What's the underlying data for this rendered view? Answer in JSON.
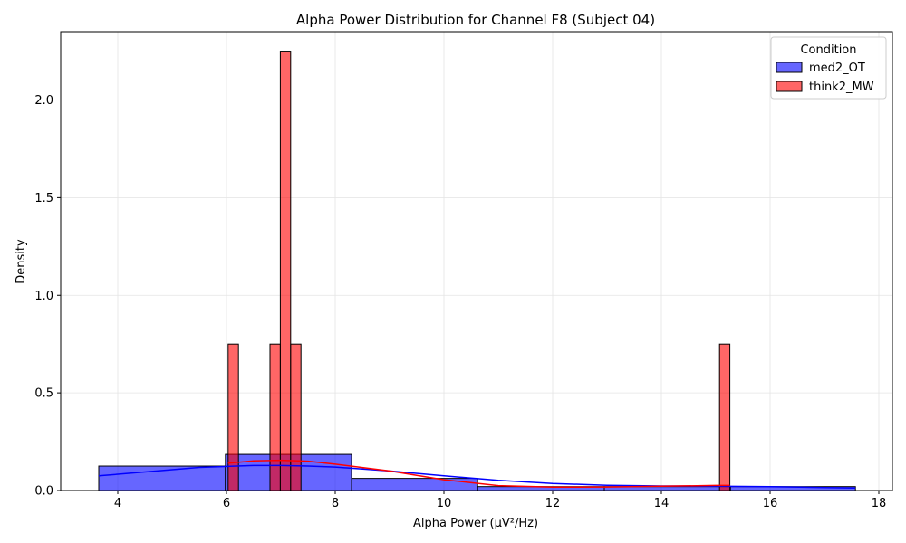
{
  "chart_data": {
    "type": "histogram",
    "title": "Alpha Power Distribution for Channel F8 (Subject 04)",
    "xlabel": "Alpha Power (µV²/Hz)",
    "ylabel": "Density",
    "xlim": [
      2.95,
      18.25
    ],
    "ylim": [
      0,
      2.35
    ],
    "xticks": [
      4,
      6,
      8,
      10,
      12,
      14,
      16,
      18
    ],
    "yticks": [
      0.0,
      0.5,
      1.0,
      1.5,
      2.0
    ],
    "grid": true,
    "legend": {
      "title": "Condition",
      "location": "upper right"
    },
    "series": [
      {
        "name": "med2_OT",
        "color": "#0000ff",
        "bins": [
          {
            "x0": 3.65,
            "x1": 5.98,
            "density": 0.125
          },
          {
            "x0": 5.98,
            "x1": 8.3,
            "density": 0.185
          },
          {
            "x0": 8.3,
            "x1": 10.62,
            "density": 0.062
          },
          {
            "x0": 10.62,
            "x1": 12.95,
            "density": 0.02
          },
          {
            "x0": 12.95,
            "x1": 15.27,
            "density": 0.02
          },
          {
            "x0": 15.27,
            "x1": 17.57,
            "density": 0.02
          }
        ],
        "kde": {
          "x": [
            3.65,
            4.5,
            5.5,
            6.5,
            7.0,
            7.5,
            8.0,
            9.0,
            10.0,
            11.0,
            12.0,
            13.0,
            14.0,
            15.0,
            16.0,
            17.0,
            17.57
          ],
          "y": [
            0.075,
            0.095,
            0.118,
            0.128,
            0.128,
            0.125,
            0.12,
            0.1,
            0.075,
            0.052,
            0.036,
            0.027,
            0.023,
            0.022,
            0.02,
            0.015,
            0.013
          ]
        }
      },
      {
        "name": "think2_MW",
        "color": "#ff0000",
        "bins": [
          {
            "x0": 6.03,
            "x1": 6.22,
            "density": 0.75
          },
          {
            "x0": 6.8,
            "x1": 6.99,
            "density": 0.75
          },
          {
            "x0": 6.99,
            "x1": 7.18,
            "density": 2.25
          },
          {
            "x0": 7.18,
            "x1": 7.37,
            "density": 0.75
          },
          {
            "x0": 15.07,
            "x1": 15.26,
            "density": 0.75
          }
        ],
        "kde": {
          "x": [
            6.03,
            6.5,
            7.0,
            7.5,
            8.0,
            9.0,
            10.0,
            11.0,
            12.0,
            13.0,
            14.0,
            15.0,
            15.26
          ],
          "y": [
            0.14,
            0.152,
            0.155,
            0.15,
            0.135,
            0.1,
            0.055,
            0.025,
            0.017,
            0.018,
            0.022,
            0.026,
            0.026
          ]
        }
      }
    ]
  }
}
